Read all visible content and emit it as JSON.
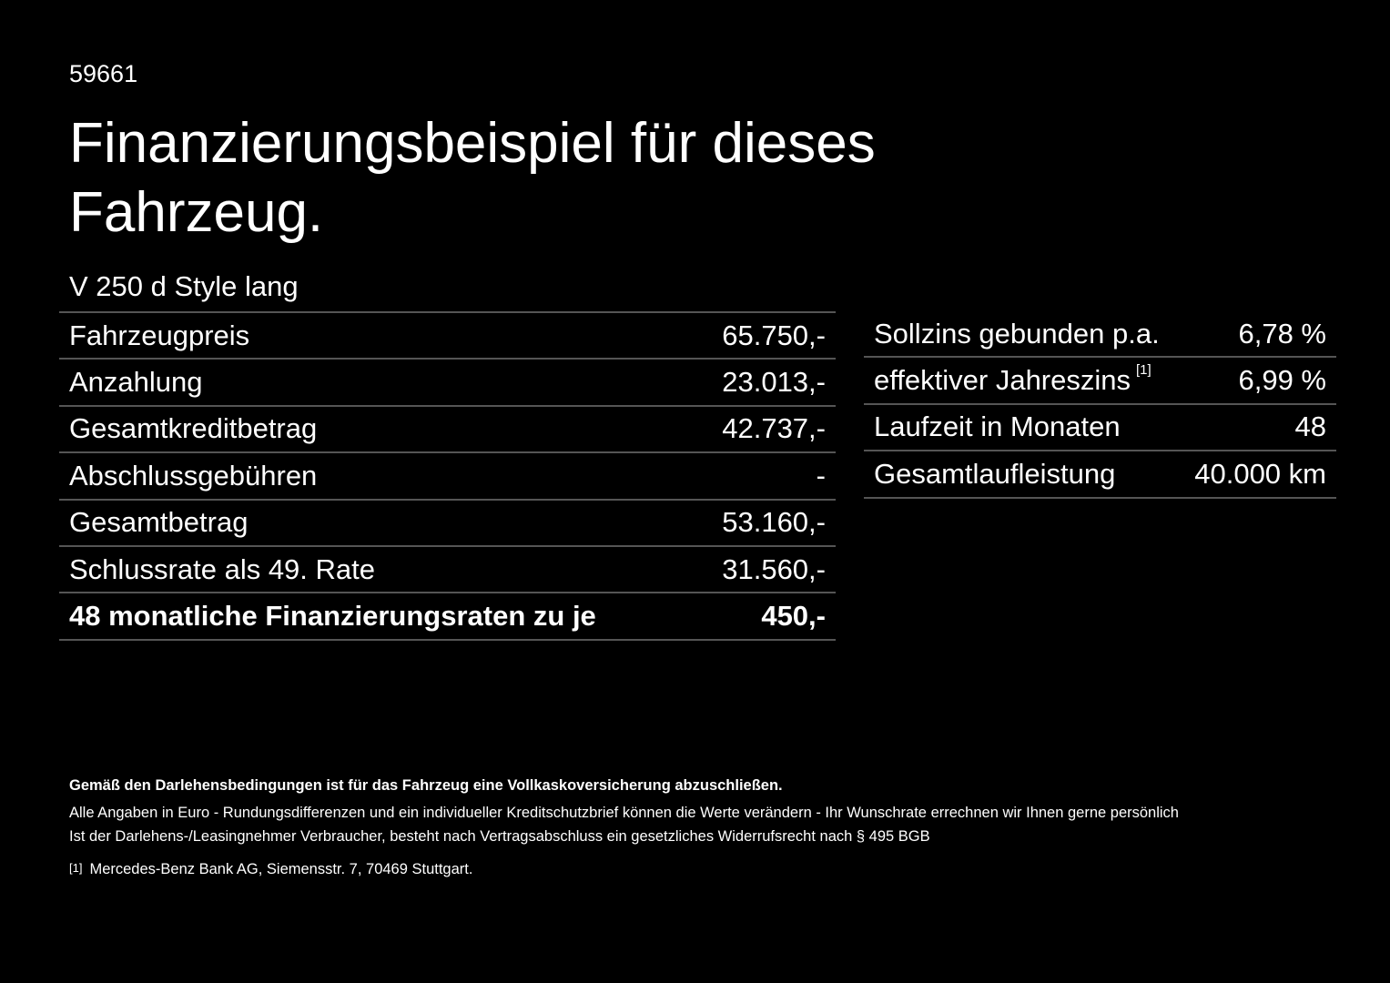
{
  "doc_id": "59661",
  "title": "Finanzierungsbeispiel für dieses Fahrzeug.",
  "model": "V 250 d Style lang",
  "left_rows": [
    {
      "label": "Fahrzeugpreis",
      "value": "65.750,-"
    },
    {
      "label": "Anzahlung",
      "value": "23.013,-"
    },
    {
      "label": "Gesamtkreditbetrag",
      "value": "42.737,-"
    },
    {
      "label": "Abschlussgebühren",
      "value": "-"
    },
    {
      "label": "Gesamtbetrag",
      "value": "53.160,-"
    },
    {
      "label": "Schlussrate als 49. Rate",
      "value": "31.560,-"
    },
    {
      "label": "48 monatliche Finanzierungsraten zu je",
      "value": "450,-"
    }
  ],
  "right_rows": [
    {
      "label": "Sollzins gebunden p.a.",
      "value": "6,78 %"
    },
    {
      "label": "effektiver Jahreszins",
      "footnote": "[1]",
      "value": "6,99 %"
    },
    {
      "label": "Laufzeit in Monaten",
      "value": "48"
    },
    {
      "label": "Gesamtlaufleistung",
      "value": "40.000 km"
    }
  ],
  "footer": {
    "insurance_note": "Gemäß den Darlehensbedingungen ist für das Fahrzeug eine Vollkaskoversicherung abzuschließen.",
    "euro_note": "Alle Angaben in Euro - Rundungsdifferenzen und ein individueller Kreditschutzbrief können die Werte verändern - Ihr Wunschrate errechnen wir Ihnen gerne persönlich",
    "withdrawal_note": "Ist der Darlehens-/Leasingnehmer Verbraucher, besteht nach Vertragsabschluss ein gesetzliches Widerrufsrecht nach § 495 BGB",
    "footnote_marker": "[1]",
    "footnote_text": "Mercedes-Benz Bank AG, Siemensstr. 7, 70469 Stuttgart."
  }
}
